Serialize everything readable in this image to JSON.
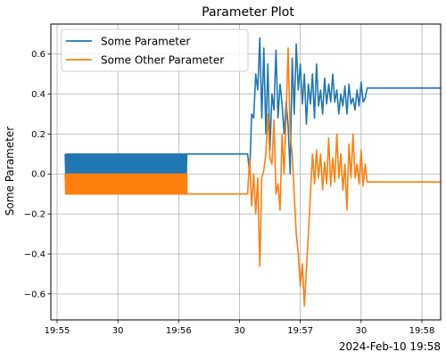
{
  "chart_data": {
    "type": "line",
    "title": "Parameter Plot",
    "ylabel": "Some Parameter",
    "xlabel": "",
    "x_offset_label": "2024-Feb-10 19:58",
    "x_unit": "time (HH:MM:SS)",
    "xlim": [
      "19:55:16",
      "19:58:17"
    ],
    "ylim": [
      -0.73,
      0.75
    ],
    "grid": true,
    "legend": "upper-left",
    "x_ticks": [
      {
        "t": "19:55:00",
        "label": "19:55"
      },
      {
        "t": "19:55:30",
        "label": "30"
      },
      {
        "t": "19:56:00",
        "label": "19:56"
      },
      {
        "t": "19:56:30",
        "label": "30"
      },
      {
        "t": "19:57:00",
        "label": "19:57"
      },
      {
        "t": "19:57:30",
        "label": "30"
      },
      {
        "t": "19:58:00",
        "label": "19:58"
      }
    ],
    "y_ticks": [
      {
        "v": 0.6,
        "label": "0.6"
      },
      {
        "v": 0.4,
        "label": "0.4"
      },
      {
        "v": 0.2,
        "label": "0.2"
      },
      {
        "v": 0.0,
        "label": "0.0"
      },
      {
        "v": -0.2,
        "label": "−0.2"
      },
      {
        "v": -0.4,
        "label": "−0.4"
      },
      {
        "v": -0.6,
        "label": "−0.6"
      }
    ],
    "series": [
      {
        "name": "Some Parameter",
        "color": "#1f77b4",
        "oscillation": {
          "from": "19:55:04",
          "to": "19:56:04",
          "high": 0.1,
          "low": 0.0
        },
        "points": [
          [
            "19:56:04",
            0.1
          ],
          [
            "19:56:34",
            0.1
          ],
          [
            "19:56:35",
            0.0
          ],
          [
            "19:56:36",
            0.3
          ],
          [
            "19:56:37",
            0.28
          ],
          [
            "19:56:38",
            0.5
          ],
          [
            "19:56:39",
            0.42
          ],
          [
            "19:56:40",
            0.68
          ],
          [
            "19:56:41",
            0.28
          ],
          [
            "19:56:42",
            0.63
          ],
          [
            "19:56:43",
            0.2
          ],
          [
            "19:56:44",
            0.55
          ],
          [
            "19:56:45",
            0.12
          ],
          [
            "19:56:46",
            0.4
          ],
          [
            "19:56:47",
            0.32
          ],
          [
            "19:56:48",
            0.62
          ],
          [
            "19:56:49",
            0.28
          ],
          [
            "19:56:50",
            0.45
          ],
          [
            "19:56:51",
            0.35
          ],
          [
            "19:56:52",
            0.2
          ],
          [
            "19:56:53",
            0.36
          ],
          [
            "19:56:54",
            0.24
          ],
          [
            "19:56:55",
            0.0
          ],
          [
            "19:56:56",
            0.58
          ],
          [
            "19:56:57",
            0.3
          ],
          [
            "19:56:58",
            0.65
          ],
          [
            "19:56:59",
            0.42
          ],
          [
            "19:57:00",
            0.55
          ],
          [
            "19:57:01",
            0.35
          ],
          [
            "19:57:02",
            0.5
          ],
          [
            "19:57:03",
            0.25
          ],
          [
            "19:57:04",
            0.45
          ],
          [
            "19:57:05",
            0.35
          ],
          [
            "19:57:06",
            0.5
          ],
          [
            "19:57:07",
            0.28
          ],
          [
            "19:57:08",
            0.55
          ],
          [
            "19:57:09",
            0.34
          ],
          [
            "19:57:10",
            0.42
          ],
          [
            "19:57:11",
            0.3
          ],
          [
            "19:57:12",
            0.48
          ],
          [
            "19:57:13",
            0.35
          ],
          [
            "19:57:14",
            0.45
          ],
          [
            "19:57:15",
            0.36
          ],
          [
            "19:57:16",
            0.5
          ],
          [
            "19:57:17",
            0.36
          ],
          [
            "19:57:18",
            0.42
          ],
          [
            "19:57:19",
            0.3
          ],
          [
            "19:57:20",
            0.4
          ],
          [
            "19:57:21",
            0.34
          ],
          [
            "19:57:22",
            0.44
          ],
          [
            "19:57:23",
            0.3
          ],
          [
            "19:57:24",
            0.45
          ],
          [
            "19:57:25",
            0.35
          ],
          [
            "19:57:26",
            0.38
          ],
          [
            "19:57:27",
            0.32
          ],
          [
            "19:57:28",
            0.42
          ],
          [
            "19:57:29",
            0.34
          ],
          [
            "19:57:30",
            0.46
          ],
          [
            "19:57:31",
            0.36
          ],
          [
            "19:57:32",
            0.38
          ],
          [
            "19:57:33",
            0.43
          ],
          [
            "19:57:34",
            0.43
          ],
          [
            "19:58:17",
            0.43
          ]
        ]
      },
      {
        "name": "Some Other Parameter",
        "color": "#ff7f0e",
        "oscillation": {
          "from": "19:55:04",
          "to": "19:56:04",
          "high": 0.0,
          "low": -0.1
        },
        "points": [
          [
            "19:56:04",
            -0.1
          ],
          [
            "19:56:34",
            -0.1
          ],
          [
            "19:56:35",
            0.08
          ],
          [
            "19:56:36",
            -0.16
          ],
          [
            "19:56:37",
            0.0
          ],
          [
            "19:56:38",
            -0.2
          ],
          [
            "19:56:39",
            -0.02
          ],
          [
            "19:56:40",
            -0.46
          ],
          [
            "19:56:41",
            -0.02
          ],
          [
            "19:56:42",
            0.02
          ],
          [
            "19:56:43",
            0.1
          ],
          [
            "19:56:44",
            0.3
          ],
          [
            "19:56:45",
            0.08
          ],
          [
            "19:56:46",
            0.05
          ],
          [
            "19:56:47",
            0.27
          ],
          [
            "19:56:48",
            -0.1
          ],
          [
            "19:56:49",
            -0.05
          ],
          [
            "19:56:50",
            -0.18
          ],
          [
            "19:56:51",
            0.2
          ],
          [
            "19:56:52",
            0.0
          ],
          [
            "19:56:53",
            0.3
          ],
          [
            "19:56:54",
            0.63
          ],
          [
            "19:56:55",
            0.2
          ],
          [
            "19:56:56",
            0.1
          ],
          [
            "19:56:57",
            -0.1
          ],
          [
            "19:56:58",
            -0.3
          ],
          [
            "19:56:59",
            -0.4
          ],
          [
            "19:57:00",
            -0.56
          ],
          [
            "19:57:01",
            -0.45
          ],
          [
            "19:57:02",
            -0.66
          ],
          [
            "19:57:03",
            -0.48
          ],
          [
            "19:57:04",
            -0.3
          ],
          [
            "19:57:05",
            -0.1
          ],
          [
            "19:57:06",
            0.1
          ],
          [
            "19:57:07",
            -0.05
          ],
          [
            "19:57:08",
            0.12
          ],
          [
            "19:57:09",
            -0.02
          ],
          [
            "19:57:10",
            0.1
          ],
          [
            "19:57:11",
            -0.08
          ],
          [
            "19:57:12",
            0.06
          ],
          [
            "19:57:13",
            -0.05
          ],
          [
            "19:57:14",
            0.18
          ],
          [
            "19:57:15",
            -0.06
          ],
          [
            "19:57:16",
            0.08
          ],
          [
            "19:57:17",
            -0.04
          ],
          [
            "19:57:18",
            0.2
          ],
          [
            "19:57:19",
            -0.02
          ],
          [
            "19:57:20",
            0.1
          ],
          [
            "19:57:21",
            -0.08
          ],
          [
            "19:57:22",
            0.05
          ],
          [
            "19:57:23",
            -0.18
          ],
          [
            "19:57:24",
            0.15
          ],
          [
            "19:57:25",
            -0.02
          ],
          [
            "19:57:26",
            0.2
          ],
          [
            "19:57:27",
            -0.02
          ],
          [
            "19:57:28",
            0.05
          ],
          [
            "19:57:29",
            -0.05
          ],
          [
            "19:57:30",
            0.12
          ],
          [
            "19:57:31",
            -0.06
          ],
          [
            "19:57:32",
            0.05
          ],
          [
            "19:57:33",
            -0.04
          ],
          [
            "19:57:34",
            -0.04
          ],
          [
            "19:58:17",
            -0.04
          ]
        ]
      }
    ]
  }
}
